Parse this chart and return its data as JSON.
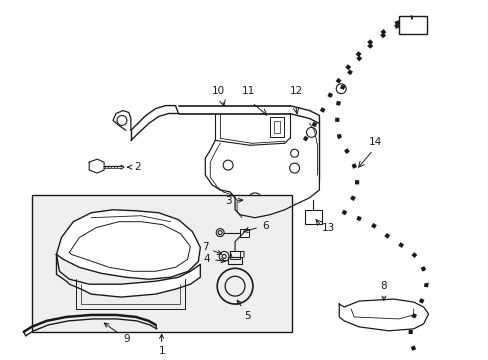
{
  "bg_color": "#ffffff",
  "line_color": "#1a1a1a",
  "fig_width": 4.89,
  "fig_height": 3.6,
  "dpi": 100,
  "font_size": 7.5
}
